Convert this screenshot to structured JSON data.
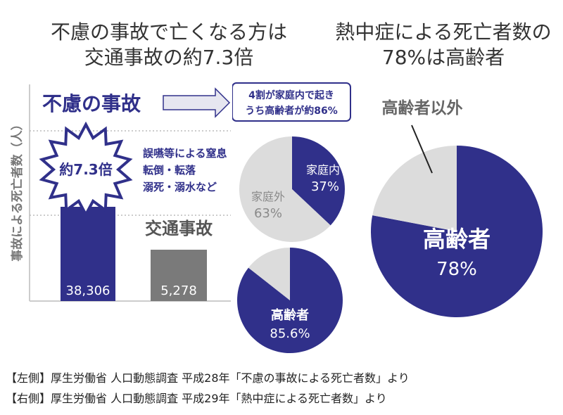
{
  "titles": {
    "left_line1": "不慮の事故で亡くなる方は",
    "left_line2": "交通事故の約7.3倍",
    "right_line1": "熱中症による死亡者数の",
    "right_line2": "78%は高齢者"
  },
  "sources": {
    "left": "【左側】厚生労働省 人口動態調査 平成28年「不慮の事故による死亡者数」より",
    "right": "【右側】厚生労働省 人口動態調査 平成29年「熱中症による死亡者数」より"
  },
  "colors": {
    "navy": "#30308a",
    "gray_bar": "#7a7a7a",
    "light_gray": "#dcdcdc",
    "gray_text": "#8a8a8a"
  },
  "callouts": {
    "big_label": "不慮の事故",
    "box_line1": "4割が家庭内で起き",
    "box_line2": "うち高齢者が約86%",
    "starburst": "約7.3倍",
    "causes": [
      "誤嚥等による窒息",
      "転倒・転落",
      "溺死・溺水など"
    ],
    "traffic_label": "交通事故"
  },
  "chart_data": [
    {
      "type": "bar",
      "categories": [
        "不慮の事故",
        "交通事故"
      ],
      "values": [
        38306,
        5278
      ],
      "value_labels": [
        "38,306",
        "5,278"
      ],
      "ylabel": "事故による死亡者数（人）",
      "ylim": [
        0,
        42000
      ],
      "note": "upper part of the tall bar is broken (axis break)"
    },
    {
      "type": "pie",
      "labels": [
        "家庭内",
        "家庭外"
      ],
      "values": [
        37,
        63
      ],
      "value_labels": [
        "37%",
        "63%"
      ]
    },
    {
      "type": "pie",
      "labels": [
        "高齢者",
        ""
      ],
      "values": [
        85.6,
        14.4
      ],
      "value_labels": [
        "85.6%",
        ""
      ]
    },
    {
      "type": "pie",
      "labels": [
        "高齢者",
        "高齢者以外"
      ],
      "values": [
        78,
        22
      ],
      "value_labels": [
        "78%",
        ""
      ]
    }
  ]
}
